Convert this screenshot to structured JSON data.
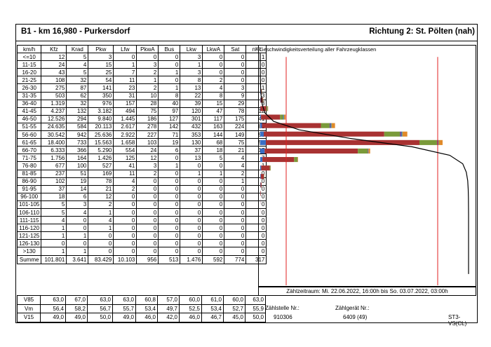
{
  "header": {
    "title": "B1 - km 16,980 - Purkersdorf",
    "direction": "Richtung 2: St. Pölten (nah)"
  },
  "table": {
    "columns": [
      "km/h",
      "Kfz",
      "Krad",
      "Pkw",
      "Lfw",
      "PkwA",
      "Bus",
      "Lkw",
      "LkwA",
      "Sat",
      "nKl"
    ],
    "rows": [
      [
        "<=10",
        "12",
        "5",
        "3",
        "0",
        "0",
        "0",
        "3",
        "0",
        "0",
        "1"
      ],
      [
        "11-15",
        "24",
        "4",
        "15",
        "1",
        "3",
        "0",
        "1",
        "0",
        "0",
        "0"
      ],
      [
        "16-20",
        "43",
        "5",
        "25",
        "7",
        "2",
        "1",
        "3",
        "0",
        "0",
        "0"
      ],
      [
        "21-25",
        "108",
        "32",
        "54",
        "11",
        "1",
        "0",
        "8",
        "2",
        "0",
        "0"
      ],
      [
        "26-30",
        "275",
        "87",
        "141",
        "23",
        "2",
        "1",
        "13",
        "4",
        "3",
        "1"
      ],
      [
        "31-35",
        "503",
        "62",
        "350",
        "31",
        "10",
        "8",
        "22",
        "8",
        "9",
        "3"
      ],
      [
        "36-40",
        "1.319",
        "32",
        "976",
        "157",
        "28",
        "40",
        "39",
        "15",
        "29",
        "3"
      ],
      [
        "41-45",
        "4.237",
        "132",
        "3.182",
        "494",
        "75",
        "97",
        "120",
        "47",
        "78",
        "12"
      ],
      [
        "46-50",
        "12.526",
        "294",
        "9.840",
        "1.445",
        "186",
        "127",
        "301",
        "117",
        "175",
        "41"
      ],
      [
        "51-55",
        "24.635",
        "584",
        "20.113",
        "2.617",
        "278",
        "142",
        "432",
        "163",
        "224",
        "82"
      ],
      [
        "56-60",
        "30.542",
        "942",
        "25.636",
        "2.922",
        "227",
        "71",
        "353",
        "144",
        "149",
        "98"
      ],
      [
        "61-65",
        "18.400",
        "733",
        "15.563",
        "1.658",
        "103",
        "19",
        "130",
        "68",
        "75",
        "51"
      ],
      [
        "66-70",
        "6.333",
        "366",
        "5.290",
        "554",
        "24",
        "6",
        "37",
        "18",
        "21",
        "17"
      ],
      [
        "71-75",
        "1.756",
        "164",
        "1.426",
        "125",
        "12",
        "0",
        "13",
        "5",
        "4",
        "7"
      ],
      [
        "76-80",
        "677",
        "100",
        "527",
        "41",
        "3",
        "1",
        "0",
        "0",
        "4",
        "1"
      ],
      [
        "81-85",
        "237",
        "51",
        "169",
        "11",
        "2",
        "0",
        "1",
        "1",
        "2",
        "0"
      ],
      [
        "86-90",
        "102",
        "19",
        "78",
        "4",
        "0",
        "0",
        "0",
        "0",
        "1",
        "0"
      ],
      [
        "91-95",
        "37",
        "14",
        "21",
        "2",
        "0",
        "0",
        "0",
        "0",
        "0",
        "0"
      ],
      [
        "96-100",
        "18",
        "6",
        "12",
        "0",
        "0",
        "0",
        "0",
        "0",
        "0",
        "0"
      ],
      [
        "101-105",
        "5",
        "3",
        "2",
        "0",
        "0",
        "0",
        "0",
        "0",
        "0",
        "0"
      ],
      [
        "106-110",
        "5",
        "4",
        "1",
        "0",
        "0",
        "0",
        "0",
        "0",
        "0",
        "0"
      ],
      [
        "111-115",
        "4",
        "0",
        "4",
        "0",
        "0",
        "0",
        "0",
        "0",
        "0",
        "0"
      ],
      [
        "116-120",
        "1",
        "0",
        "1",
        "0",
        "0",
        "0",
        "0",
        "0",
        "0",
        "0"
      ],
      [
        "121-125",
        "1",
        "1",
        "0",
        "0",
        "0",
        "0",
        "0",
        "0",
        "0",
        "0"
      ],
      [
        "126-130",
        "0",
        "0",
        "0",
        "0",
        "0",
        "0",
        "0",
        "0",
        "0",
        "0"
      ],
      [
        ">130",
        "1",
        "1",
        "0",
        "0",
        "0",
        "0",
        "0",
        "0",
        "0",
        "0"
      ]
    ],
    "sum": [
      "Summe",
      "101.801",
      "3.641",
      "83.429",
      "10.103",
      "956",
      "513",
      "1.476",
      "592",
      "774",
      "317"
    ],
    "stats": [
      [
        "V85",
        "63,0",
        "67,0",
        "63,0",
        "63,0",
        "60,8",
        "57,0",
        "60,0",
        "61,0",
        "60,0",
        "63,0"
      ],
      [
        "Vm",
        "56,4",
        "58,2",
        "56,7",
        "55,7",
        "53,4",
        "49,7",
        "52,5",
        "53,4",
        "52,7",
        "55,9"
      ],
      [
        "V15",
        "49,0",
        "49,0",
        "50,0",
        "49,0",
        "46,0",
        "42,0",
        "46,0",
        "46,7",
        "45,0",
        "50,0"
      ]
    ]
  },
  "chart_data": {
    "type": "bar",
    "title": "Geschwindigkeitsverteilung aller Fahrzeugklassen",
    "orientation": "horizontal-stacked",
    "categories": [
      "<=10",
      "11-15",
      "16-20",
      "21-25",
      "26-30",
      "31-35",
      "36-40",
      "41-45",
      "46-50",
      "51-55",
      "56-60",
      "61-65",
      "66-70",
      "71-75",
      "76-80",
      "81-85",
      "86-90",
      "91-95",
      "96-100",
      "101-105",
      "106-110",
      "111-115",
      "116-120",
      "121-125",
      "126-130",
      ">130"
    ],
    "series": [
      {
        "values": [
          5,
          4,
          5,
          32,
          87,
          62,
          32,
          132,
          294,
          584,
          942,
          733,
          366,
          164,
          100,
          51,
          19,
          14,
          6,
          3,
          4,
          0,
          0,
          1,
          0,
          1
        ],
        "color": "#3a6fc4"
      },
      {
        "values": [
          3,
          15,
          25,
          54,
          141,
          350,
          976,
          3182,
          9840,
          20113,
          25636,
          15563,
          5290,
          1426,
          527,
          169,
          78,
          21,
          12,
          2,
          1,
          4,
          1,
          0,
          0,
          0
        ],
        "color": "#a83232"
      },
      {
        "values": [
          0,
          1,
          7,
          11,
          23,
          31,
          157,
          494,
          1445,
          2617,
          2922,
          1658,
          554,
          125,
          41,
          11,
          4,
          2,
          0,
          0,
          0,
          0,
          0,
          0,
          0,
          0
        ],
        "color": "#7a9a3a"
      },
      {
        "values": [
          0,
          3,
          2,
          1,
          2,
          10,
          28,
          75,
          186,
          278,
          227,
          103,
          24,
          12,
          3,
          2,
          0,
          0,
          0,
          0,
          0,
          0,
          0,
          0,
          0,
          0
        ],
        "color": "#6a4a9a"
      },
      {
        "values": [
          0,
          0,
          1,
          0,
          1,
          8,
          40,
          97,
          127,
          142,
          71,
          19,
          6,
          0,
          1,
          0,
          0,
          0,
          0,
          0,
          0,
          0,
          0,
          0,
          0,
          0
        ],
        "color": "#2fa0b0"
      },
      {
        "values": [
          3,
          1,
          3,
          10,
          20,
          39,
          83,
          245,
          593,
          819,
          646,
          273,
          76,
          22,
          4,
          4,
          1,
          0,
          0,
          0,
          0,
          0,
          0,
          0,
          0,
          0
        ],
        "color": "#e08a2a"
      }
    ],
    "cumulative_line_color": "#000000",
    "reference_lines_color": "#e02020",
    "reference_line_classes": [
      "41-45",
      "116-120"
    ]
  },
  "footer": {
    "period": "Zählzeitraum: Mi. 22.06.2022, 16:00h bis So. 03.07.2022, 03:00h",
    "station_label": "Zählstelle Nr.:",
    "station_value": "910306",
    "device_label": "Zählgerät Nr.:",
    "device_value": "6409 (49)",
    "code": "ST3-VS(CL)"
  }
}
